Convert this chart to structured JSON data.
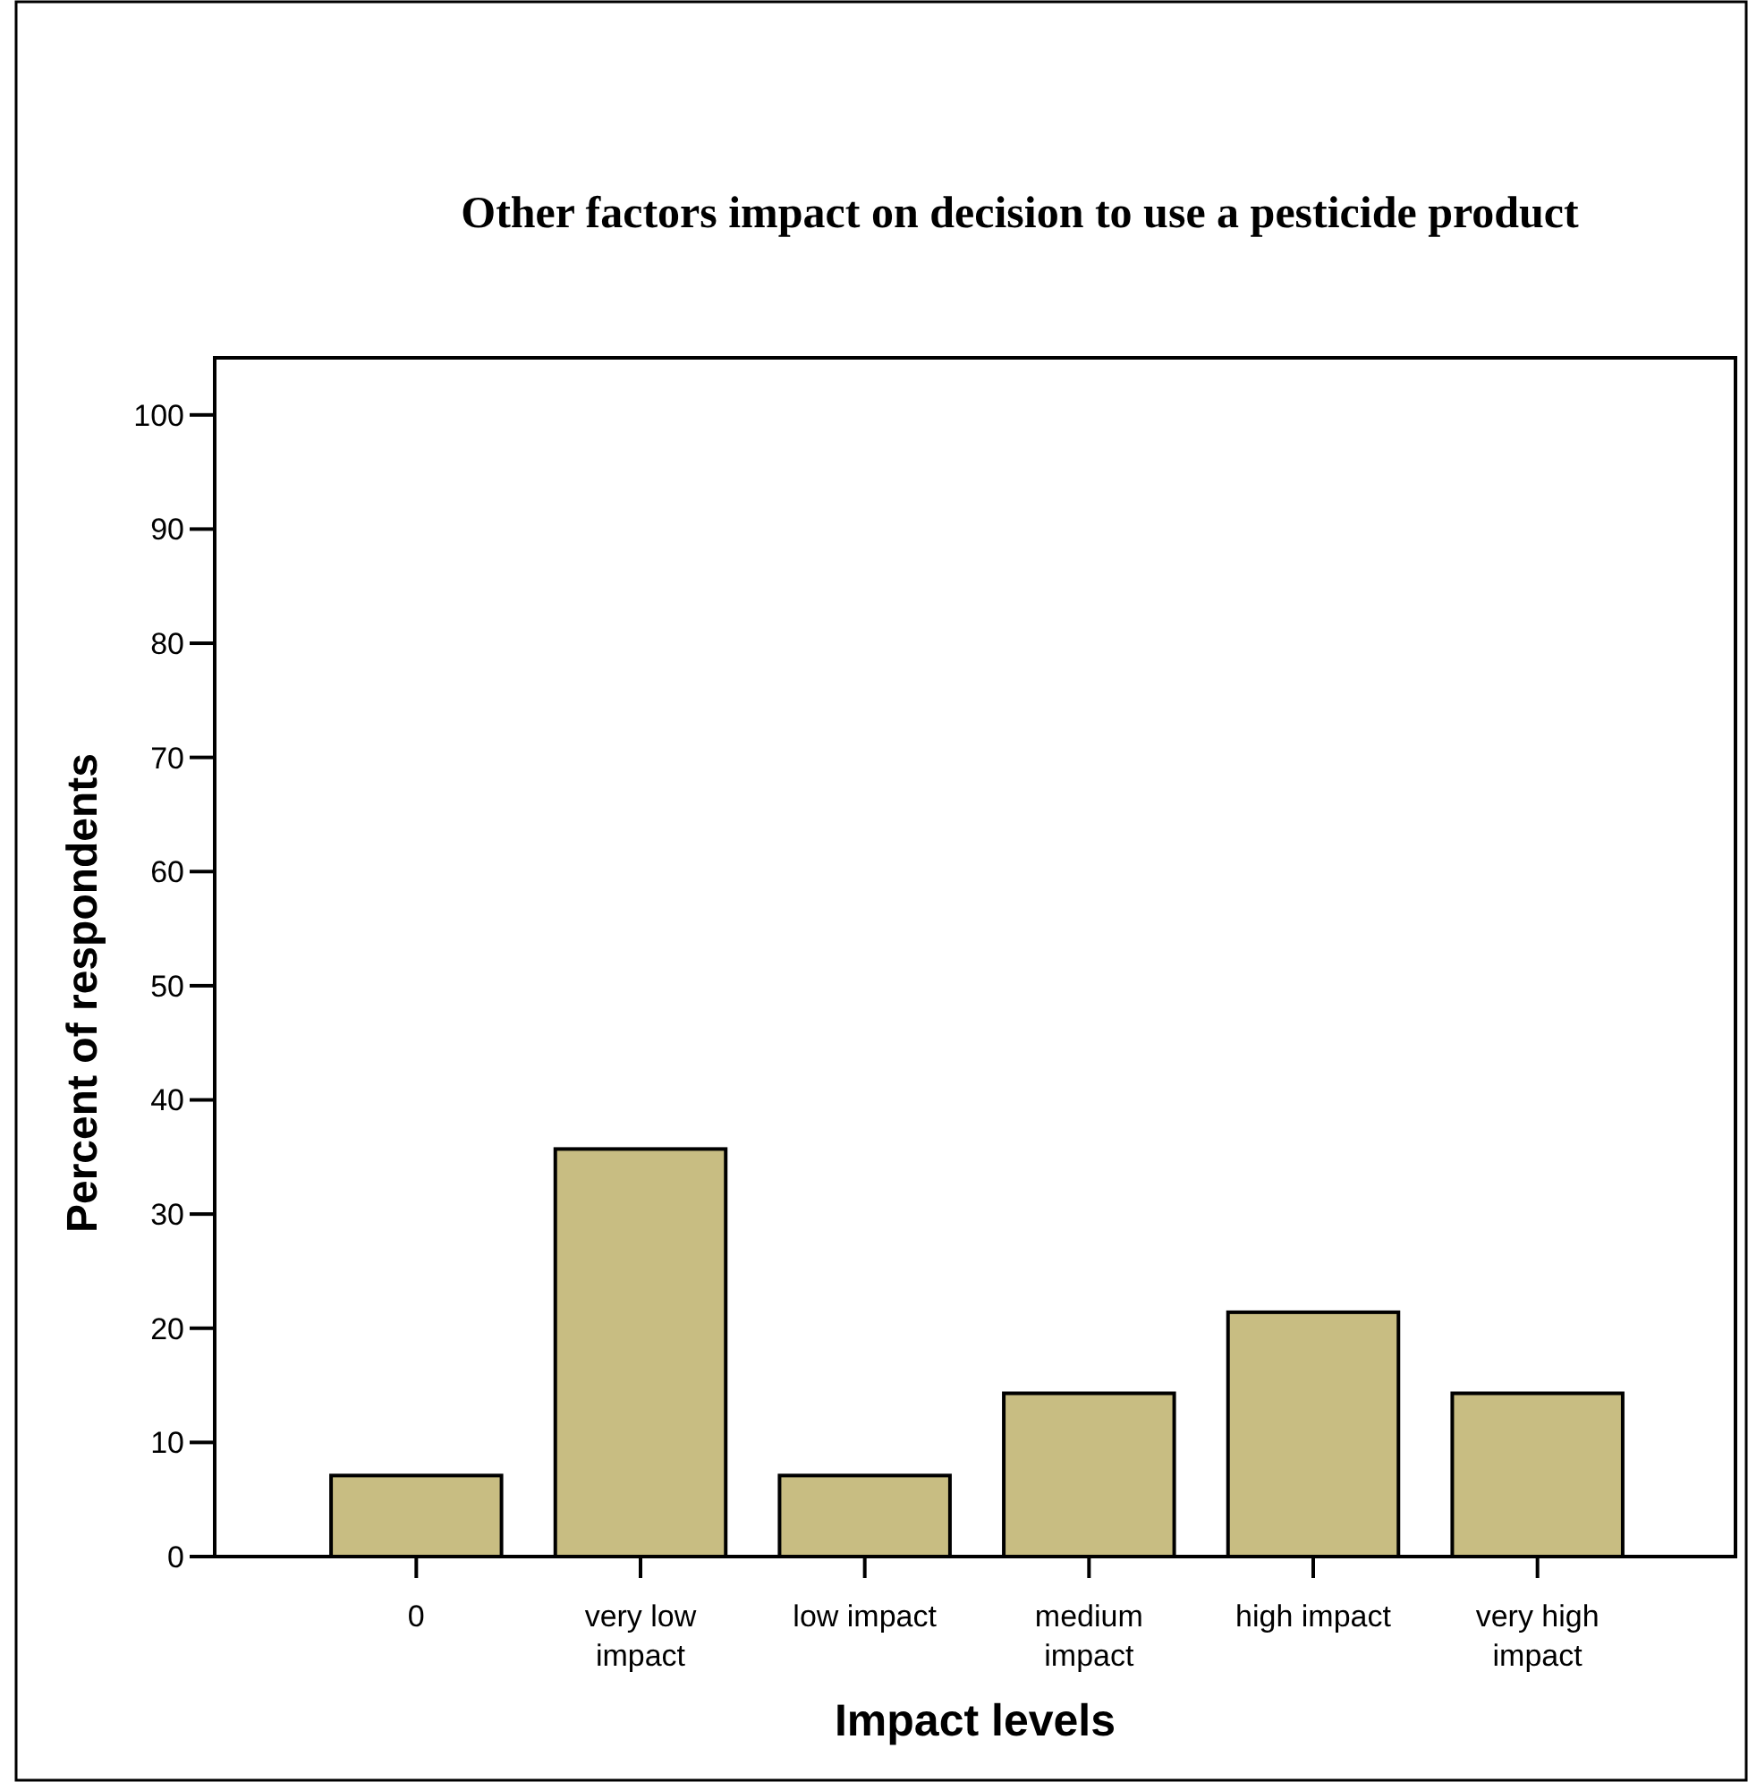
{
  "chart_data": {
    "type": "bar",
    "title": "Other factors impact on decision to use a pesticide product",
    "xlabel": "Impact levels",
    "ylabel": "Percent of respondents",
    "categories": [
      "0",
      "very low impact",
      "low impact",
      "medium impact",
      "high impact",
      "very high impact"
    ],
    "values": [
      7.1,
      35.7,
      7.1,
      14.3,
      21.4,
      14.3
    ],
    "color": "#c8bd82",
    "ylim": [
      0,
      105
    ],
    "yticks": [
      0,
      10,
      20,
      30,
      40,
      50,
      60,
      70,
      80,
      90,
      100
    ],
    "grid": false
  }
}
